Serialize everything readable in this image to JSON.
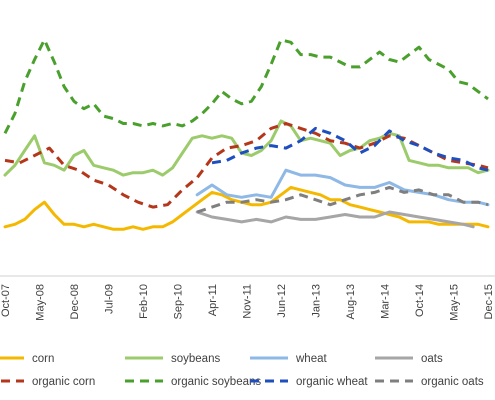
{
  "chart_data": {
    "type": "line",
    "title": "",
    "xlabel": "",
    "ylabel": "",
    "x_tick_labels": [
      "Oct-07",
      "May-08",
      "Dec-08",
      "Jul-09",
      "Feb-10",
      "Sep-10",
      "Apr-11",
      "Nov-11",
      "Jun-12",
      "Jan-13",
      "Aug-13",
      "Mar-14",
      "Oct-14",
      "May-15",
      "Dec-15"
    ],
    "x_tick_dates": [
      "2007-10",
      "2008-05",
      "2008-12",
      "2009-07",
      "2010-02",
      "2010-09",
      "2011-04",
      "2011-11",
      "2012-06",
      "2013-01",
      "2013-08",
      "2014-03",
      "2014-10",
      "2015-05",
      "2015-12"
    ],
    "ylim": [
      0,
      100
    ],
    "grid": false,
    "legend_position": "bottom",
    "series": [
      {
        "name": "corn",
        "color": "#F5B800",
        "style": "solid",
        "x": [
          "2007-10",
          "2007-12",
          "2008-02",
          "2008-04",
          "2008-06",
          "2008-08",
          "2008-10",
          "2008-12",
          "2009-02",
          "2009-04",
          "2009-06",
          "2009-08",
          "2009-10",
          "2009-12",
          "2010-02",
          "2010-04",
          "2010-06",
          "2010-08",
          "2010-10",
          "2010-12",
          "2011-02",
          "2011-04",
          "2011-06",
          "2011-08",
          "2011-10",
          "2011-12",
          "2012-02",
          "2012-04",
          "2012-06",
          "2012-08",
          "2012-10",
          "2012-12",
          "2013-02",
          "2013-04",
          "2013-06",
          "2013-08",
          "2013-10",
          "2013-12",
          "2014-02",
          "2014-04",
          "2014-06",
          "2014-08",
          "2014-10",
          "2014-12",
          "2015-02",
          "2015-04",
          "2015-06",
          "2015-08",
          "2015-10",
          "2015-12"
        ],
        "y": [
          20,
          21,
          23,
          27,
          30,
          25,
          21,
          21,
          20,
          21,
          20,
          19,
          19,
          20,
          19,
          20,
          20,
          22,
          25,
          28,
          31,
          34,
          33,
          31,
          30,
          29,
          29,
          30,
          33,
          36,
          35,
          34,
          33,
          31,
          31,
          29,
          28,
          27,
          26,
          25,
          24,
          22,
          22,
          22,
          21,
          21,
          21,
          21,
          21,
          20
        ]
      },
      {
        "name": "soybeans",
        "color": "#9CCB6B",
        "style": "solid",
        "x": [
          "2007-10",
          "2007-12",
          "2008-02",
          "2008-04",
          "2008-06",
          "2008-08",
          "2008-10",
          "2008-12",
          "2009-02",
          "2009-04",
          "2009-06",
          "2009-08",
          "2009-10",
          "2009-12",
          "2010-02",
          "2010-04",
          "2010-06",
          "2010-08",
          "2010-10",
          "2010-12",
          "2011-02",
          "2011-04",
          "2011-06",
          "2011-08",
          "2011-10",
          "2011-12",
          "2012-02",
          "2012-04",
          "2012-06",
          "2012-08",
          "2012-10",
          "2012-12",
          "2013-02",
          "2013-04",
          "2013-06",
          "2013-08",
          "2013-10",
          "2013-12",
          "2014-02",
          "2014-04",
          "2014-06",
          "2014-08",
          "2014-10",
          "2014-12",
          "2015-02",
          "2015-04",
          "2015-06",
          "2015-08",
          "2015-10",
          "2015-12"
        ],
        "y": [
          41,
          45,
          51,
          57,
          46,
          45,
          43,
          49,
          51,
          45,
          44,
          43,
          41,
          42,
          42,
          43,
          41,
          44,
          50,
          56,
          57,
          56,
          57,
          56,
          50,
          49,
          51,
          55,
          63,
          61,
          55,
          56,
          55,
          54,
          49,
          51,
          52,
          55,
          56,
          58,
          57,
          47,
          46,
          45,
          45,
          44,
          44,
          44,
          42,
          43
        ]
      },
      {
        "name": "wheat",
        "color": "#8EB8E5",
        "style": "solid",
        "x": [
          "2011-01",
          "2011-04",
          "2011-07",
          "2011-10",
          "2012-01",
          "2012-04",
          "2012-07",
          "2012-10",
          "2013-01",
          "2013-04",
          "2013-07",
          "2013-10",
          "2014-01",
          "2014-04",
          "2014-07",
          "2014-10",
          "2015-01",
          "2015-04",
          "2015-07",
          "2015-10",
          "2015-12"
        ],
        "y": [
          33,
          37,
          33,
          32,
          33,
          32,
          43,
          41,
          41,
          40,
          37,
          36,
          36,
          38,
          35,
          34,
          33,
          31,
          30,
          30,
          29
        ]
      },
      {
        "name": "oats",
        "color": "#A6A6A6",
        "style": "solid",
        "x": [
          "2011-01",
          "2011-04",
          "2011-07",
          "2011-10",
          "2012-01",
          "2012-04",
          "2012-07",
          "2012-10",
          "2013-01",
          "2013-04",
          "2013-07",
          "2013-10",
          "2014-01",
          "2014-04",
          "2014-07",
          "2014-10",
          "2015-01",
          "2015-04",
          "2015-07",
          "2015-09"
        ],
        "y": [
          26,
          24,
          23,
          22,
          23,
          22,
          24,
          23,
          23,
          24,
          25,
          24,
          24,
          26,
          25,
          24,
          23,
          22,
          21,
          20
        ]
      },
      {
        "name": "organic corn",
        "color": "#B5371B",
        "style": "dash",
        "x": [
          "2007-10",
          "2008-01",
          "2008-04",
          "2008-07",
          "2008-10",
          "2009-01",
          "2009-04",
          "2009-07",
          "2009-10",
          "2010-01",
          "2010-04",
          "2010-07",
          "2010-10",
          "2011-01",
          "2011-04",
          "2011-07",
          "2011-10",
          "2012-01",
          "2012-04",
          "2012-07",
          "2012-10",
          "2013-01",
          "2013-04",
          "2013-07",
          "2013-10",
          "2014-01",
          "2014-04",
          "2014-07",
          "2014-10",
          "2015-01",
          "2015-04",
          "2015-07",
          "2015-10",
          "2015-12"
        ],
        "y": [
          47,
          46,
          49,
          52,
          45,
          43,
          39,
          37,
          33,
          30,
          28,
          29,
          35,
          40,
          48,
          52,
          53,
          55,
          60,
          62,
          60,
          58,
          55,
          54,
          52,
          54,
          57,
          56,
          53,
          50,
          47,
          46,
          45,
          44
        ]
      },
      {
        "name": "organic soybeans",
        "color": "#4AA02C",
        "style": "dash",
        "x": [
          "2007-10",
          "2007-12",
          "2008-02",
          "2008-04",
          "2008-06",
          "2008-08",
          "2008-10",
          "2008-12",
          "2009-02",
          "2009-04",
          "2009-06",
          "2009-08",
          "2009-10",
          "2009-12",
          "2010-02",
          "2010-04",
          "2010-06",
          "2010-08",
          "2010-10",
          "2010-12",
          "2011-02",
          "2011-04",
          "2011-06",
          "2011-08",
          "2011-10",
          "2011-12",
          "2012-02",
          "2012-04",
          "2012-06",
          "2012-08",
          "2012-10",
          "2012-12",
          "2013-02",
          "2013-04",
          "2013-06",
          "2013-08",
          "2013-10",
          "2013-12",
          "2014-02",
          "2014-04",
          "2014-06",
          "2014-08",
          "2014-10",
          "2014-12",
          "2015-02",
          "2015-04",
          "2015-06",
          "2015-08",
          "2015-10",
          "2015-12"
        ],
        "y": [
          58,
          66,
          79,
          88,
          96,
          87,
          77,
          71,
          68,
          70,
          65,
          64,
          62,
          62,
          61,
          62,
          61,
          62,
          61,
          63,
          66,
          70,
          75,
          72,
          70,
          71,
          77,
          86,
          96,
          95,
          90,
          90,
          89,
          89,
          87,
          85,
          85,
          88,
          91,
          88,
          87,
          90,
          93,
          88,
          86,
          84,
          79,
          78,
          75,
          72
        ]
      },
      {
        "name": "organic wheat",
        "color": "#1F4FBF",
        "style": "dash",
        "x": [
          "2011-04",
          "2011-07",
          "2011-10",
          "2012-01",
          "2012-04",
          "2012-07",
          "2012-10",
          "2013-01",
          "2013-04",
          "2013-07",
          "2013-10",
          "2014-01",
          "2014-04",
          "2014-07",
          "2014-10",
          "2015-01",
          "2015-04",
          "2015-07",
          "2015-10",
          "2015-12"
        ],
        "y": [
          46,
          47,
          50,
          52,
          53,
          52,
          55,
          60,
          58,
          55,
          50,
          53,
          59,
          55,
          53,
          50,
          48,
          47,
          44,
          43
        ]
      },
      {
        "name": "organic oats",
        "color": "#7F7F7F",
        "style": "dash",
        "x": [
          "2011-01",
          "2011-04",
          "2011-07",
          "2011-10",
          "2012-01",
          "2012-04",
          "2012-07",
          "2012-10",
          "2013-01",
          "2013-04",
          "2013-07",
          "2013-10",
          "2014-01",
          "2014-04",
          "2014-07",
          "2014-10",
          "2015-01",
          "2015-04",
          "2015-07",
          "2015-10",
          "2015-12"
        ],
        "y": [
          26,
          28,
          30,
          30,
          31,
          30,
          31,
          33,
          31,
          29,
          31,
          33,
          34,
          36,
          34,
          35,
          33,
          33,
          30,
          30,
          29
        ]
      }
    ]
  }
}
